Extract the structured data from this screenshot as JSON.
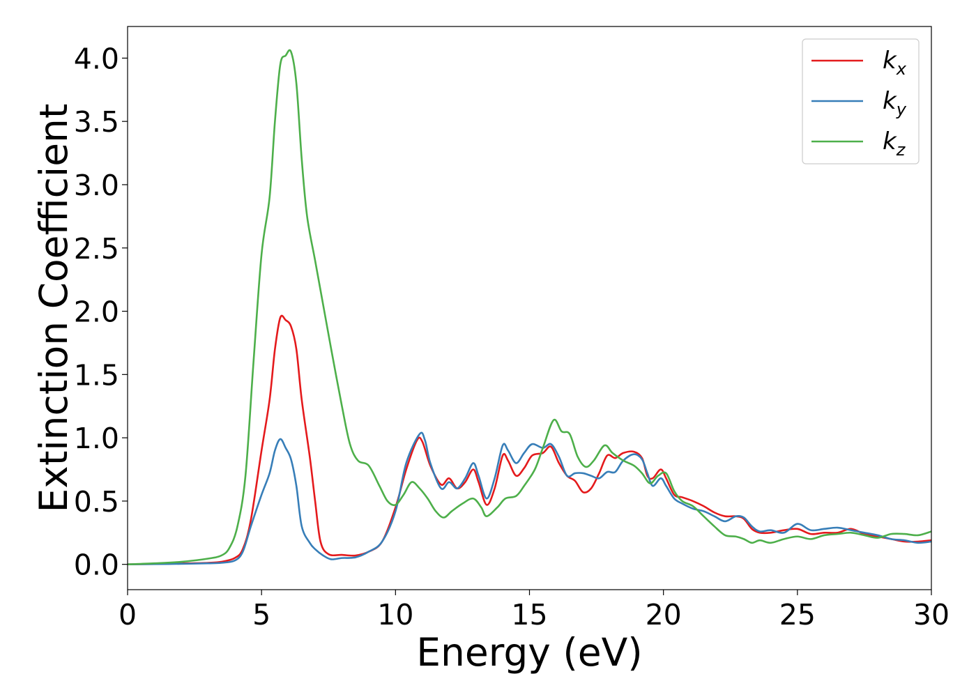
{
  "chart_data": {
    "type": "line",
    "xlabel": "Energy (eV)",
    "ylabel": "Extinction Coefficient",
    "xlim": [
      0,
      30
    ],
    "ylim": [
      -0.2,
      4.25
    ],
    "xticks": [
      "0",
      "5",
      "10",
      "15",
      "20",
      "25",
      "30"
    ],
    "yticks": [
      "0.0",
      "0.5",
      "1.0",
      "1.5",
      "2.0",
      "2.5",
      "3.0",
      "3.5",
      "4.0"
    ],
    "grid": false,
    "legend_position": "top-right",
    "series": [
      {
        "name": "k",
        "subscript": "x",
        "color": "#e41a1c",
        "points": [
          [
            0,
            0
          ],
          [
            1,
            0.003
          ],
          [
            2,
            0.007
          ],
          [
            3,
            0.012
          ],
          [
            3.5,
            0.02
          ],
          [
            4,
            0.05
          ],
          [
            4.3,
            0.12
          ],
          [
            4.6,
            0.35
          ],
          [
            5,
            0.9
          ],
          [
            5.3,
            1.3
          ],
          [
            5.5,
            1.7
          ],
          [
            5.7,
            1.95
          ],
          [
            5.9,
            1.93
          ],
          [
            6.1,
            1.88
          ],
          [
            6.3,
            1.7
          ],
          [
            6.5,
            1.3
          ],
          [
            6.8,
            0.85
          ],
          [
            7.0,
            0.5
          ],
          [
            7.2,
            0.18
          ],
          [
            7.5,
            0.08
          ],
          [
            8.0,
            0.075
          ],
          [
            8.5,
            0.07
          ],
          [
            9.0,
            0.1
          ],
          [
            9.5,
            0.18
          ],
          [
            10,
            0.45
          ],
          [
            10.4,
            0.75
          ],
          [
            10.8,
            0.98
          ],
          [
            11.0,
            0.97
          ],
          [
            11.3,
            0.78
          ],
          [
            11.7,
            0.63
          ],
          [
            12.0,
            0.68
          ],
          [
            12.3,
            0.6
          ],
          [
            12.6,
            0.65
          ],
          [
            12.9,
            0.75
          ],
          [
            13.1,
            0.65
          ],
          [
            13.4,
            0.47
          ],
          [
            13.7,
            0.6
          ],
          [
            14.0,
            0.86
          ],
          [
            14.2,
            0.82
          ],
          [
            14.5,
            0.7
          ],
          [
            14.8,
            0.76
          ],
          [
            15.1,
            0.86
          ],
          [
            15.5,
            0.88
          ],
          [
            15.8,
            0.93
          ],
          [
            16.1,
            0.8
          ],
          [
            16.4,
            0.7
          ],
          [
            16.7,
            0.66
          ],
          [
            17.0,
            0.57
          ],
          [
            17.3,
            0.6
          ],
          [
            17.6,
            0.72
          ],
          [
            17.9,
            0.86
          ],
          [
            18.2,
            0.84
          ],
          [
            18.5,
            0.88
          ],
          [
            18.9,
            0.89
          ],
          [
            19.2,
            0.84
          ],
          [
            19.4,
            0.7
          ],
          [
            19.6,
            0.68
          ],
          [
            19.9,
            0.75
          ],
          [
            20.1,
            0.68
          ],
          [
            20.4,
            0.55
          ],
          [
            20.7,
            0.53
          ],
          [
            21.1,
            0.5
          ],
          [
            21.5,
            0.46
          ],
          [
            21.9,
            0.41
          ],
          [
            22.3,
            0.38
          ],
          [
            22.7,
            0.38
          ],
          [
            23.0,
            0.36
          ],
          [
            23.3,
            0.28
          ],
          [
            23.6,
            0.25
          ],
          [
            24.0,
            0.25
          ],
          [
            24.5,
            0.27
          ],
          [
            25.0,
            0.28
          ],
          [
            25.5,
            0.24
          ],
          [
            26.0,
            0.25
          ],
          [
            26.5,
            0.25
          ],
          [
            27.0,
            0.28
          ],
          [
            27.5,
            0.24
          ],
          [
            28.0,
            0.22
          ],
          [
            28.5,
            0.2
          ],
          [
            29.0,
            0.18
          ],
          [
            29.5,
            0.18
          ],
          [
            30,
            0.19
          ]
        ]
      },
      {
        "name": "k",
        "subscript": "y",
        "color": "#377eb8",
        "points": [
          [
            0,
            0
          ],
          [
            1,
            0.002
          ],
          [
            2,
            0.004
          ],
          [
            3,
            0.008
          ],
          [
            3.5,
            0.012
          ],
          [
            4,
            0.03
          ],
          [
            4.3,
            0.1
          ],
          [
            4.6,
            0.3
          ],
          [
            5,
            0.55
          ],
          [
            5.3,
            0.72
          ],
          [
            5.5,
            0.9
          ],
          [
            5.7,
            0.99
          ],
          [
            5.9,
            0.92
          ],
          [
            6.1,
            0.83
          ],
          [
            6.3,
            0.62
          ],
          [
            6.5,
            0.3
          ],
          [
            6.8,
            0.17
          ],
          [
            7.0,
            0.12
          ],
          [
            7.3,
            0.07
          ],
          [
            7.6,
            0.04
          ],
          [
            8.0,
            0.05
          ],
          [
            8.5,
            0.055
          ],
          [
            9.0,
            0.1
          ],
          [
            9.5,
            0.18
          ],
          [
            10,
            0.42
          ],
          [
            10.4,
            0.8
          ],
          [
            10.9,
            1.03
          ],
          [
            11.1,
            0.98
          ],
          [
            11.3,
            0.8
          ],
          [
            11.7,
            0.6
          ],
          [
            12.0,
            0.65
          ],
          [
            12.3,
            0.6
          ],
          [
            12.6,
            0.68
          ],
          [
            12.9,
            0.8
          ],
          [
            13.1,
            0.7
          ],
          [
            13.4,
            0.52
          ],
          [
            13.7,
            0.68
          ],
          [
            14.0,
            0.94
          ],
          [
            14.2,
            0.9
          ],
          [
            14.5,
            0.8
          ],
          [
            14.8,
            0.88
          ],
          [
            15.1,
            0.95
          ],
          [
            15.5,
            0.92
          ],
          [
            15.8,
            0.95
          ],
          [
            16.1,
            0.85
          ],
          [
            16.4,
            0.7
          ],
          [
            16.7,
            0.72
          ],
          [
            17.0,
            0.72
          ],
          [
            17.3,
            0.7
          ],
          [
            17.6,
            0.68
          ],
          [
            17.9,
            0.73
          ],
          [
            18.2,
            0.73
          ],
          [
            18.5,
            0.82
          ],
          [
            18.9,
            0.87
          ],
          [
            19.2,
            0.83
          ],
          [
            19.4,
            0.72
          ],
          [
            19.6,
            0.62
          ],
          [
            19.9,
            0.68
          ],
          [
            20.1,
            0.62
          ],
          [
            20.4,
            0.52
          ],
          [
            20.7,
            0.48
          ],
          [
            21.1,
            0.44
          ],
          [
            21.5,
            0.42
          ],
          [
            21.9,
            0.38
          ],
          [
            22.3,
            0.34
          ],
          [
            22.7,
            0.38
          ],
          [
            23.0,
            0.37
          ],
          [
            23.3,
            0.3
          ],
          [
            23.6,
            0.26
          ],
          [
            24.0,
            0.27
          ],
          [
            24.5,
            0.25
          ],
          [
            25.0,
            0.32
          ],
          [
            25.5,
            0.27
          ],
          [
            26.0,
            0.28
          ],
          [
            26.5,
            0.29
          ],
          [
            27.0,
            0.27
          ],
          [
            27.5,
            0.25
          ],
          [
            28.0,
            0.23
          ],
          [
            28.5,
            0.2
          ],
          [
            29.0,
            0.19
          ],
          [
            29.5,
            0.17
          ],
          [
            30,
            0.18
          ]
        ]
      },
      {
        "name": "k",
        "subscript": "z",
        "color": "#4daf4a",
        "points": [
          [
            0,
            0
          ],
          [
            1,
            0.008
          ],
          [
            2,
            0.02
          ],
          [
            3,
            0.045
          ],
          [
            3.5,
            0.07
          ],
          [
            3.8,
            0.13
          ],
          [
            4.1,
            0.3
          ],
          [
            4.4,
            0.7
          ],
          [
            4.7,
            1.6
          ],
          [
            5.0,
            2.45
          ],
          [
            5.3,
            2.9
          ],
          [
            5.5,
            3.5
          ],
          [
            5.7,
            3.95
          ],
          [
            5.9,
            4.02
          ],
          [
            6.1,
            4.05
          ],
          [
            6.3,
            3.8
          ],
          [
            6.5,
            3.2
          ],
          [
            6.7,
            2.75
          ],
          [
            7.0,
            2.4
          ],
          [
            7.3,
            2.05
          ],
          [
            7.6,
            1.7
          ],
          [
            8.0,
            1.25
          ],
          [
            8.3,
            0.95
          ],
          [
            8.6,
            0.82
          ],
          [
            9.0,
            0.78
          ],
          [
            9.4,
            0.62
          ],
          [
            9.7,
            0.5
          ],
          [
            10.0,
            0.47
          ],
          [
            10.3,
            0.55
          ],
          [
            10.6,
            0.65
          ],
          [
            10.9,
            0.6
          ],
          [
            11.2,
            0.52
          ],
          [
            11.5,
            0.42
          ],
          [
            11.8,
            0.37
          ],
          [
            12.1,
            0.42
          ],
          [
            12.5,
            0.48
          ],
          [
            12.9,
            0.52
          ],
          [
            13.2,
            0.45
          ],
          [
            13.4,
            0.38
          ],
          [
            13.8,
            0.45
          ],
          [
            14.1,
            0.52
          ],
          [
            14.5,
            0.54
          ],
          [
            14.8,
            0.62
          ],
          [
            15.2,
            0.75
          ],
          [
            15.5,
            0.92
          ],
          [
            15.9,
            1.14
          ],
          [
            16.2,
            1.05
          ],
          [
            16.5,
            1.03
          ],
          [
            16.8,
            0.85
          ],
          [
            17.1,
            0.77
          ],
          [
            17.4,
            0.82
          ],
          [
            17.8,
            0.94
          ],
          [
            18.1,
            0.88
          ],
          [
            18.5,
            0.82
          ],
          [
            18.9,
            0.78
          ],
          [
            19.2,
            0.72
          ],
          [
            19.5,
            0.64
          ],
          [
            19.8,
            0.7
          ],
          [
            20.1,
            0.72
          ],
          [
            20.4,
            0.58
          ],
          [
            20.7,
            0.5
          ],
          [
            21.1,
            0.46
          ],
          [
            21.5,
            0.38
          ],
          [
            21.9,
            0.3
          ],
          [
            22.3,
            0.23
          ],
          [
            22.7,
            0.22
          ],
          [
            23.0,
            0.2
          ],
          [
            23.3,
            0.17
          ],
          [
            23.6,
            0.19
          ],
          [
            24.0,
            0.17
          ],
          [
            24.5,
            0.2
          ],
          [
            25.0,
            0.22
          ],
          [
            25.5,
            0.2
          ],
          [
            26.0,
            0.23
          ],
          [
            26.5,
            0.24
          ],
          [
            27.0,
            0.25
          ],
          [
            27.5,
            0.23
          ],
          [
            28.0,
            0.21
          ],
          [
            28.5,
            0.24
          ],
          [
            29.0,
            0.24
          ],
          [
            29.5,
            0.23
          ],
          [
            30,
            0.26
          ]
        ]
      }
    ]
  }
}
